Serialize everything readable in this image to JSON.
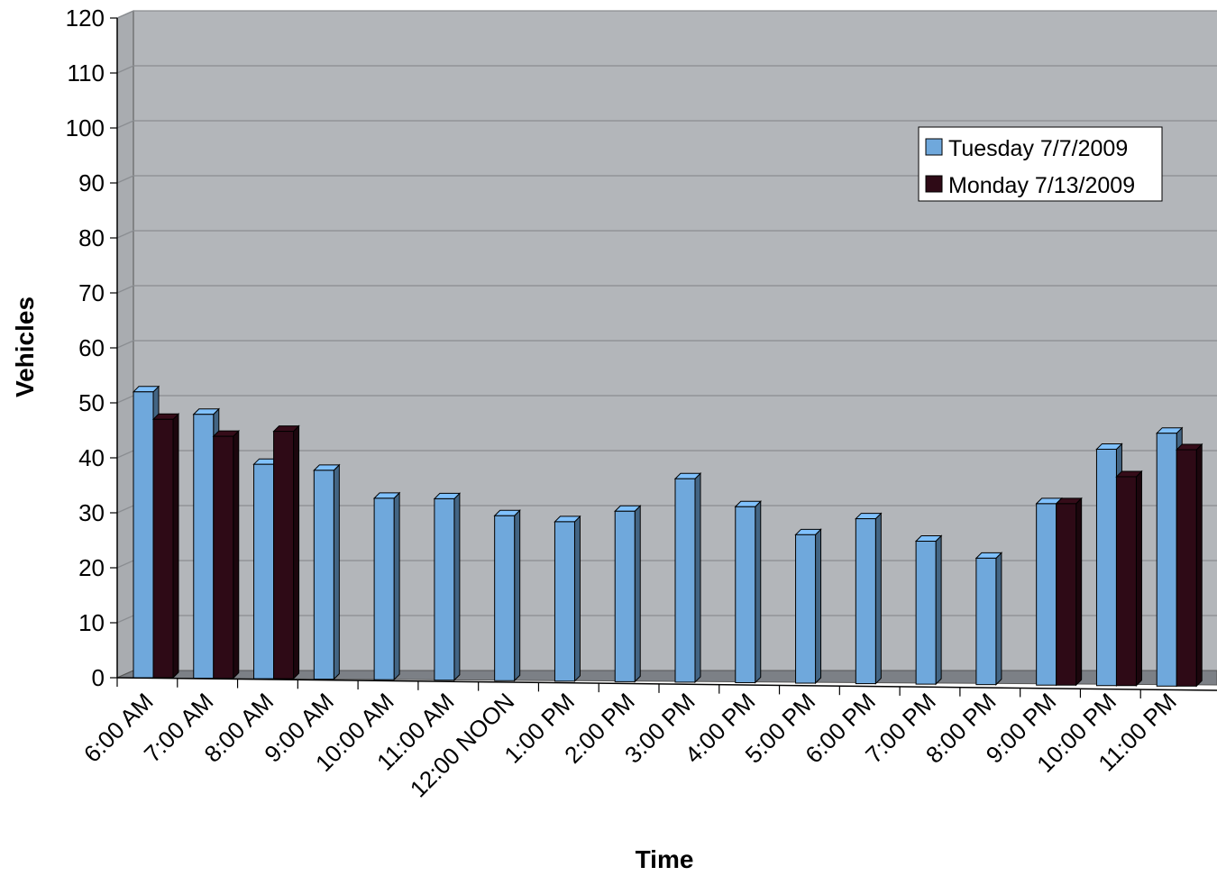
{
  "chart_data": {
    "type": "bar",
    "title": "",
    "xlabel": "Time",
    "ylabel": "Vehicles",
    "ylim": [
      0,
      120
    ],
    "yticks": [
      0,
      10,
      20,
      30,
      40,
      50,
      60,
      70,
      80,
      90,
      100,
      110,
      120
    ],
    "grid": true,
    "legend_position": "top-right",
    "categories": [
      "6:00 AM",
      "7:00 AM",
      "8:00 AM",
      "9:00 AM",
      "10:00 AM",
      "11:00 AM",
      "12:00 NOON",
      "1:00 PM",
      "2:00 PM",
      "3:00 PM",
      "4:00 PM",
      "5:00 PM",
      "6:00 PM",
      "7:00 PM",
      "8:00 PM",
      "9:00 PM",
      "10:00 PM",
      "11:00 PM"
    ],
    "series": [
      {
        "name": "Tuesday 7/7/2009",
        "color": "#6fa8dc",
        "values": [
          52,
          48,
          39,
          38,
          33,
          33,
          30,
          29,
          31,
          37,
          32,
          27,
          30,
          26,
          23,
          33,
          43,
          46
        ]
      },
      {
        "name": "Monday 7/13/2009",
        "color": "#2e0a16",
        "values": [
          47,
          44,
          45,
          null,
          null,
          null,
          null,
          null,
          null,
          null,
          null,
          null,
          null,
          null,
          null,
          33,
          38,
          43
        ]
      }
    ]
  },
  "colors": {
    "plot_background": "#b3b6ba",
    "floor": "#7c8086",
    "gridline": "#8a8d91"
  }
}
